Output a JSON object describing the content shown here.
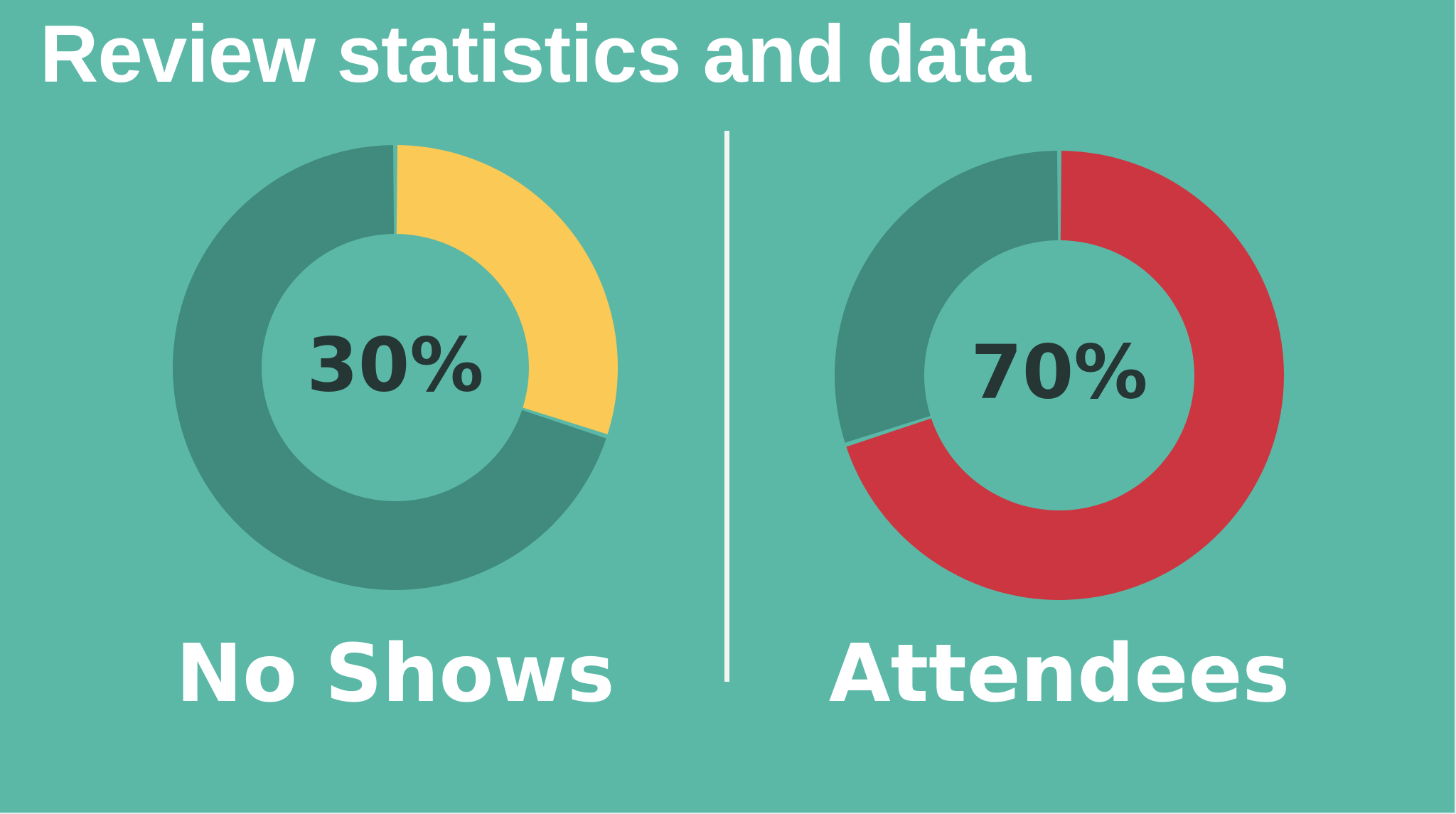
{
  "slide": {
    "title": "Review statistics and data"
  },
  "chart_data": [
    {
      "type": "pie",
      "variant": "donut",
      "center_label": "30%",
      "caption": "No Shows",
      "slices": [
        {
          "label": "No Shows",
          "value": 30,
          "color": "#fbc955"
        },
        {
          "label": "",
          "value": 70,
          "color": "#418b7e"
        }
      ]
    },
    {
      "type": "pie",
      "variant": "donut",
      "center_label": "70%",
      "caption": "Attendees",
      "slices": [
        {
          "label": "Attendees",
          "value": 70,
          "color": "#cb3640"
        },
        {
          "label": "",
          "value": 30,
          "color": "#418b7e"
        }
      ]
    }
  ],
  "colors": {
    "background": "#5bb8a7",
    "text": "#ffffff",
    "center_text": "#263634"
  }
}
